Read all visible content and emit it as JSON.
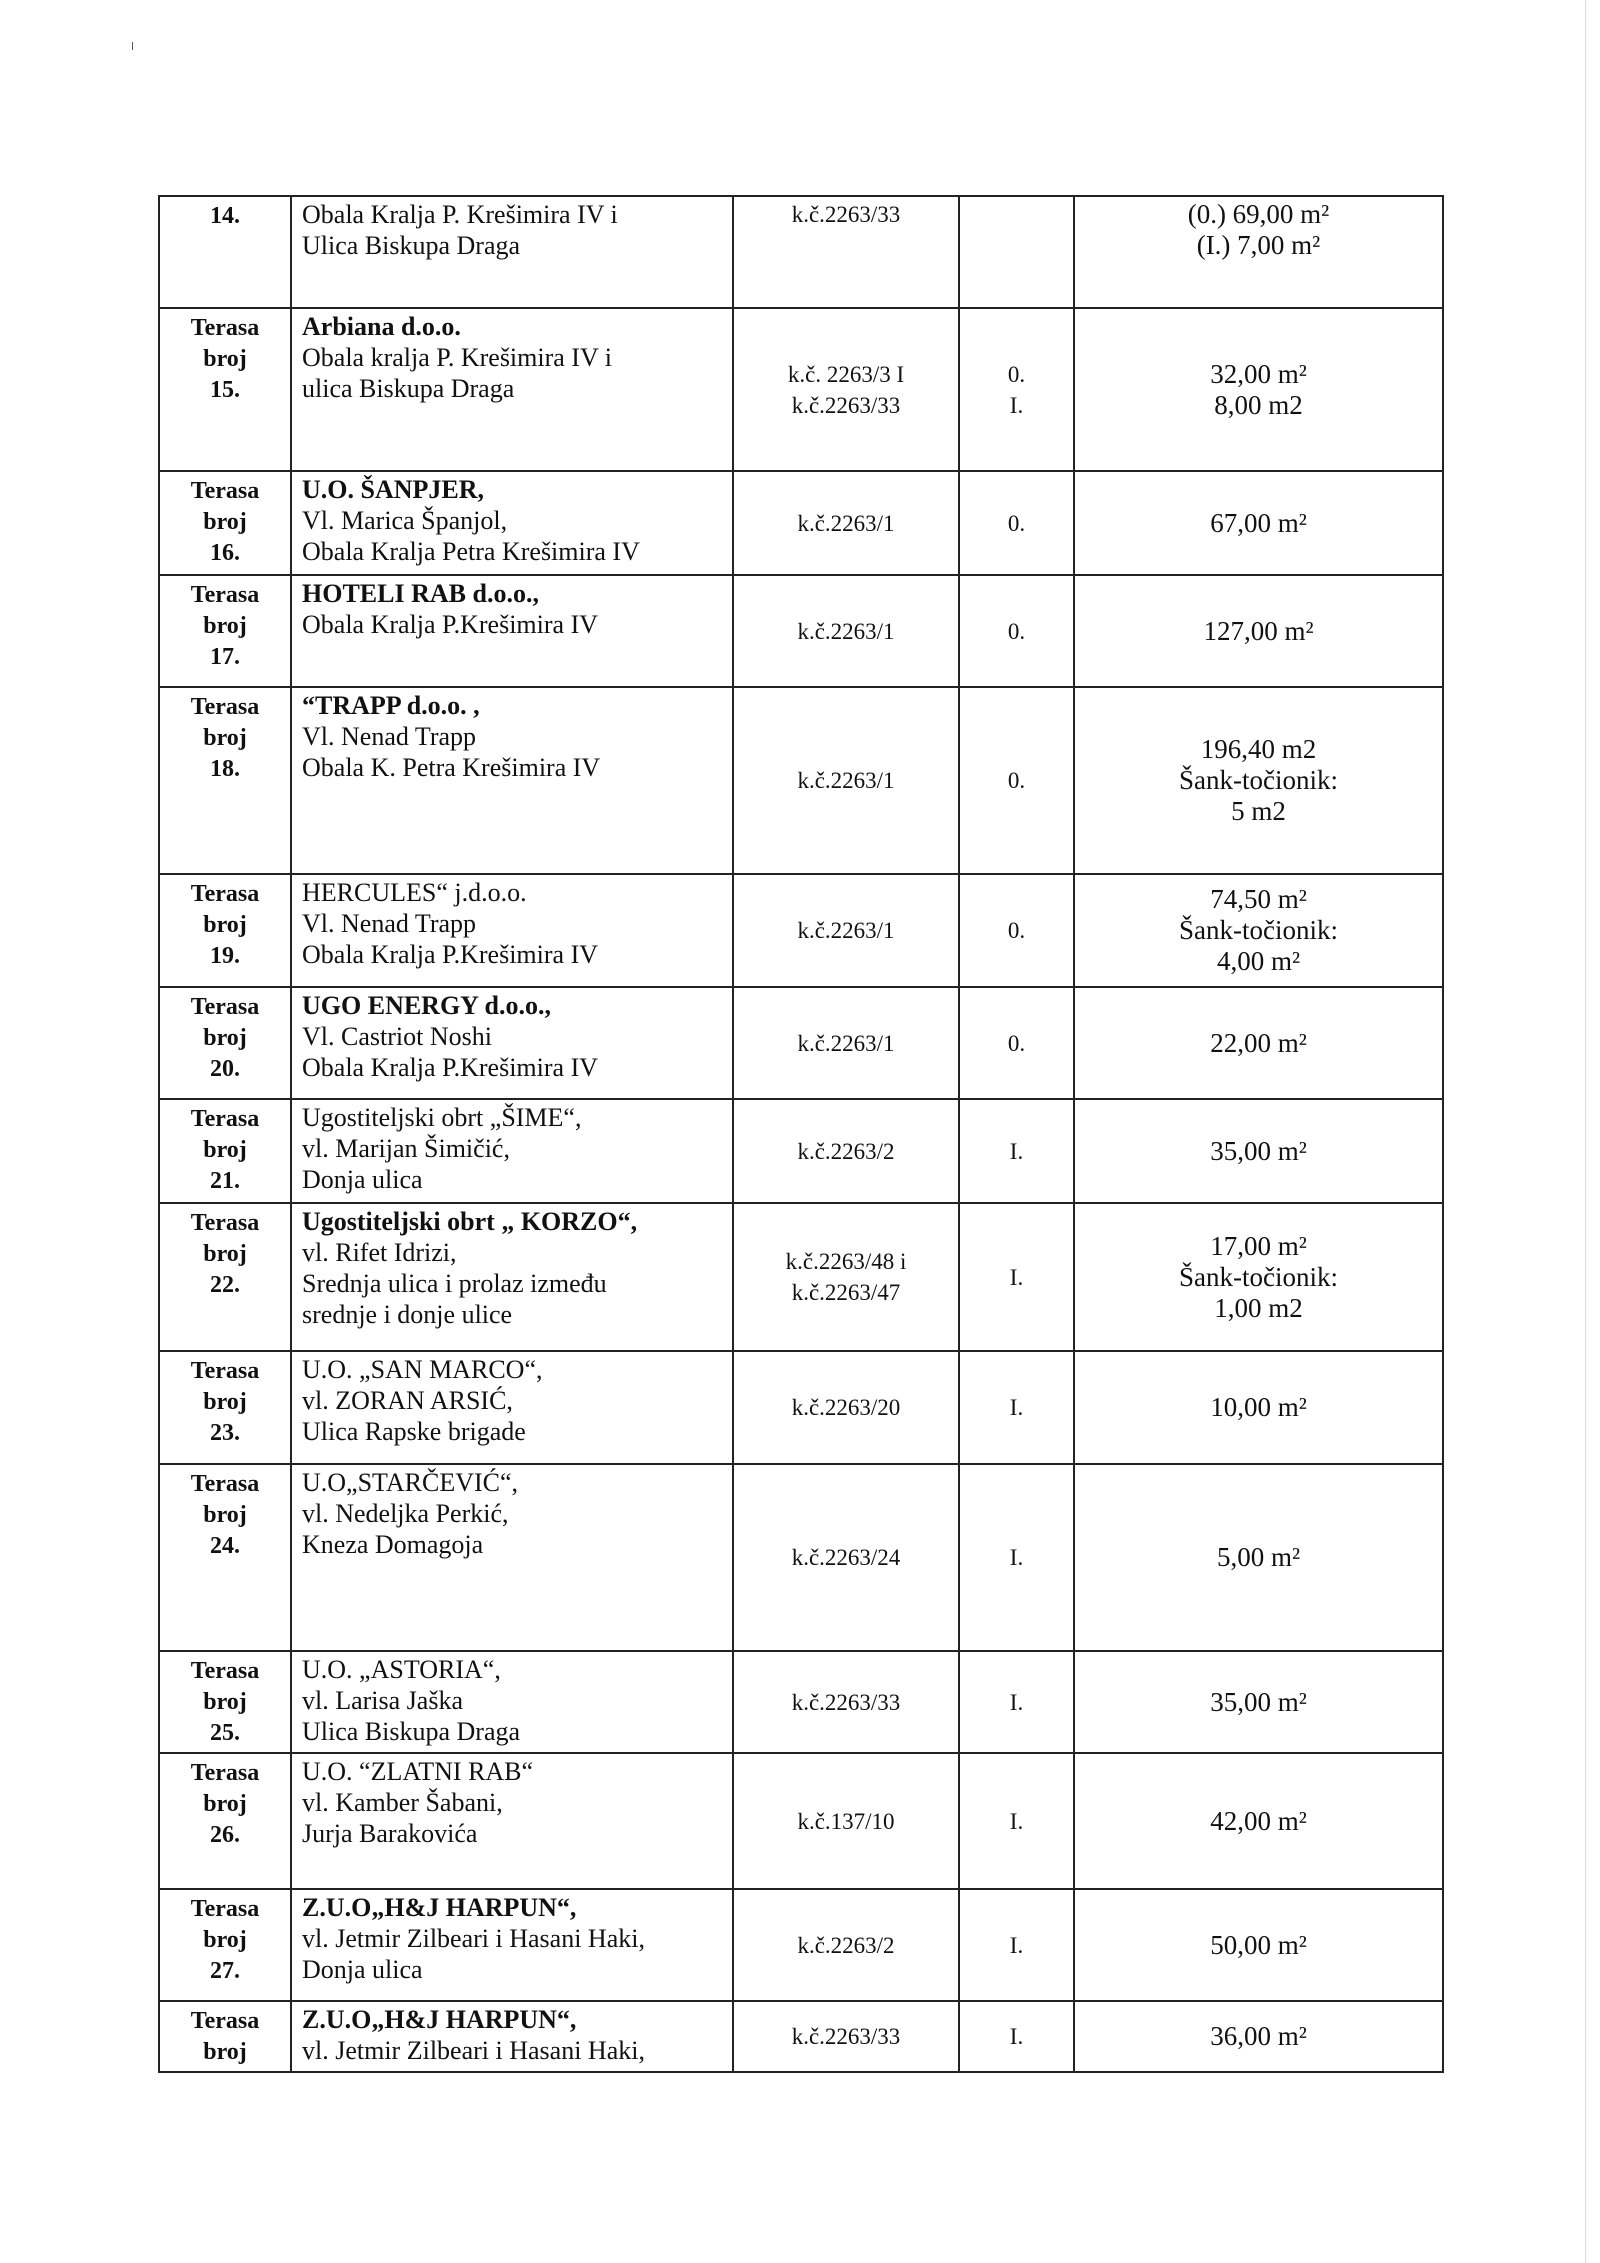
{
  "rows": [
    {
      "label": [
        "14."
      ],
      "name": [
        {
          "t": "Obala Kralja P. Krešimira IV i",
          "b": false
        },
        {
          "t": "Ulica Biskupa Draga",
          "b": false
        }
      ],
      "kc": [
        "k.č.2263/33"
      ],
      "level": [],
      "area": [
        "(0.) 69,00 m²",
        "(I.) 7,00 m²"
      ]
    },
    {
      "label": [
        "Terasa",
        "broj",
        "15."
      ],
      "name": [
        {
          "t": "Arbiana d.o.o.",
          "b": true
        },
        {
          "t": "Obala kralja P. Krešimira  IV i",
          "b": false
        },
        {
          "t": "ulica Biskupa Draga",
          "b": false
        }
      ],
      "kc": [
        "k.č. 2263/3 I",
        "k.č.2263/33"
      ],
      "level": [
        "0.",
        "I."
      ],
      "area": [
        "32,00 m²",
        "8,00 m2"
      ]
    },
    {
      "label": [
        "Terasa",
        "broj",
        "16."
      ],
      "name": [
        {
          "t": "U.O. ŠANPJER,",
          "b": true
        },
        {
          "t": "Vl. Marica Španjol,",
          "b": false
        },
        {
          "t": " Obala Kralja Petra Krešimira IV",
          "b": false
        }
      ],
      "kc": [
        "k.č.2263/1"
      ],
      "level": [
        "0."
      ],
      "area": [
        "67,00 m²"
      ]
    },
    {
      "label": [
        "Terasa",
        "broj",
        "17."
      ],
      "name": [
        {
          "t": "HOTELI RAB d.o.o.,",
          "b": true
        },
        {
          "t": " Obala Kralja P.Krešimira IV",
          "b": false
        }
      ],
      "kc": [
        "k.č.2263/1"
      ],
      "level": [
        "0."
      ],
      "area": [
        "127,00 m²"
      ]
    },
    {
      "label": [
        "Terasa",
        "broj",
        "18."
      ],
      "name": [
        {
          "t": "“TRAPP d.o.o. ,",
          "b": true
        },
        {
          "t": "Vl. Nenad Trapp",
          "b": false
        },
        {
          "t": "Obala K. Petra Krešimira IV",
          "b": false
        }
      ],
      "kc": [
        "k.č.2263/1"
      ],
      "level": [
        "0."
      ],
      "area": [
        "196,40 m2",
        "Šank-točionik:",
        "5 m2"
      ]
    },
    {
      "label": [
        "Terasa",
        "broj",
        "19."
      ],
      "name": [
        {
          "t": "HERCULES“ j.d.o.o.",
          "b": false
        },
        {
          "t": "Vl. Nenad Trapp",
          "b": false
        },
        {
          "t": "Obala Kralja P.Krešimira IV",
          "b": false
        }
      ],
      "kc": [
        "k.č.2263/1"
      ],
      "level": [
        "0."
      ],
      "area": [
        "74,50 m²",
        "Šank-točionik:",
        "4,00 m²"
      ]
    },
    {
      "label": [
        "Terasa",
        "broj",
        "20."
      ],
      "name": [
        {
          "t": "UGO ENERGY d.o.o.,",
          "b": true
        },
        {
          "t": "Vl. Castriot Noshi",
          "b": false
        },
        {
          "t": "Obala Kralja P.Krešimira IV",
          "b": false
        }
      ],
      "kc": [
        "k.č.2263/1"
      ],
      "level": [
        "0."
      ],
      "area": [
        "22,00 m²"
      ]
    },
    {
      "label": [
        "Terasa",
        "broj",
        "21."
      ],
      "name": [
        {
          "t": "Ugostiteljski obrt „ŠIME“,",
          "b": false
        },
        {
          "t": " vl. Marijan Šimičić,",
          "b": false
        },
        {
          "t": "Donja ulica",
          "b": false
        }
      ],
      "kc": [
        "k.č.2263/2"
      ],
      "level": [
        "I."
      ],
      "area": [
        "35,00 m²"
      ]
    },
    {
      "label": [
        "Terasa",
        "broj",
        "22."
      ],
      "name": [
        {
          "t": "Ugostiteljski obrt „ KORZO“,",
          "b": true
        },
        {
          "t": "vl. Rifet Idrizi,",
          "b": false
        },
        {
          "t": " Srednja ulica i prolaz između",
          "b": false
        },
        {
          "t": "srednje i donje ulice",
          "b": false
        }
      ],
      "kc": [
        "k.č.2263/48 i",
        "k.č.2263/47"
      ],
      "level": [
        "I."
      ],
      "area": [
        "17,00 m²",
        "Šank-točionik:",
        "1,00 m2"
      ]
    },
    {
      "label": [
        "Terasa",
        "broj",
        "23."
      ],
      "name": [
        {
          "t": "U.O. „SAN MARCO“,",
          "b": false
        },
        {
          "t": "vl. ZORAN ARSIĆ,",
          "b": false
        },
        {
          "t": " Ulica Rapske brigade",
          "b": false
        }
      ],
      "kc": [
        "k.č.2263/20"
      ],
      "level": [
        "I."
      ],
      "area": [
        "10,00 m²"
      ]
    },
    {
      "label": [
        "Terasa",
        "broj",
        "24."
      ],
      "name": [
        {
          "t": "U.O„STARČEVIĆ“,",
          "b": false
        },
        {
          "t": "vl. Nedeljka Perkić,",
          "b": false
        },
        {
          "t": "Kneza Domagoja",
          "b": false
        }
      ],
      "kc": [
        "k.č.2263/24"
      ],
      "level": [
        "I."
      ],
      "area": [
        "5,00 m²"
      ]
    },
    {
      "label": [
        "Terasa",
        "broj",
        "25."
      ],
      "name": [
        {
          "t": "U.O. „ASTORIA“,",
          "b": false
        },
        {
          "t": "vl. Larisa Jaška",
          "b": false
        },
        {
          "t": "Ulica Biskupa Draga",
          "b": false
        }
      ],
      "kc": [
        "k.č.2263/33"
      ],
      "level": [
        "I."
      ],
      "area": [
        "35,00 m²"
      ]
    },
    {
      "label": [
        "Terasa",
        "broj",
        "26."
      ],
      "name": [
        {
          "t": "U.O. “ZLATNI RAB“",
          "b": false
        },
        {
          "t": "vl. Kamber Šabani,",
          "b": false
        },
        {
          "t": "Jurja Barakovića",
          "b": false
        }
      ],
      "kc": [
        "k.č.137/10"
      ],
      "level": [
        "I."
      ],
      "area": [
        "42,00 m²"
      ]
    },
    {
      "label": [
        "Terasa",
        "broj",
        "27."
      ],
      "name": [
        {
          "t": "Z.U.O„H&J HARPUN“,",
          "b": true
        },
        {
          "t": "vl. Jetmir Zilbeari i Hasani Haki,",
          "b": false
        },
        {
          "t": "Donja ulica",
          "b": false
        }
      ],
      "kc": [
        "k.č.2263/2"
      ],
      "level": [
        "I."
      ],
      "area": [
        "50,00 m²"
      ]
    },
    {
      "label": [
        "Terasa",
        "broj"
      ],
      "name": [
        {
          "t": "Z.U.O„H&J HARPUN“,",
          "b": true
        },
        {
          "t": "vl. Jetmir Zilbeari i Hasani Haki,",
          "b": false
        }
      ],
      "kc": [
        "k.č.2263/33"
      ],
      "level": [
        "I."
      ],
      "area": [
        "36,00 m²"
      ]
    }
  ]
}
